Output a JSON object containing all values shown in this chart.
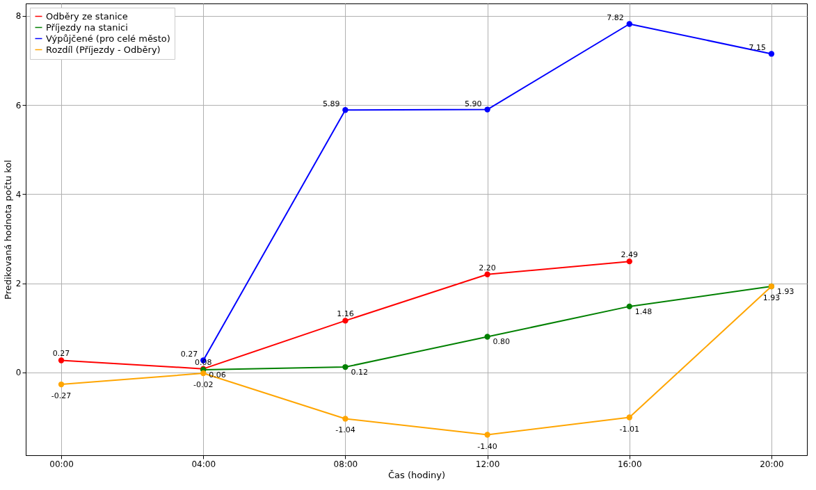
{
  "chart_data": {
    "type": "line",
    "xlabel": "Čas (hodiny)",
    "ylabel": "Predikovaná hodnota počtu kol",
    "x": [
      0,
      4,
      8,
      12,
      16,
      20
    ],
    "series": [
      {
        "name": "Odběry ze stanice",
        "color": "#ff0000",
        "values": [
          0.27,
          0.08,
          1.16,
          2.2,
          2.49,
          null
        ],
        "value_labels": [
          "0.27",
          "0.08",
          "1.16",
          "2.20",
          "2.49",
          null
        ]
      },
      {
        "name": "Příjezdy na stanici",
        "color": "#008000",
        "values": [
          null,
          0.06,
          0.12,
          0.8,
          1.48,
          1.93
        ],
        "value_labels": [
          null,
          "0.06",
          "0.12",
          "0.80",
          "1.48",
          "1.93"
        ]
      },
      {
        "name": "Výpůjčené (pro celé město)",
        "color": "#0000ff",
        "values": [
          null,
          0.27,
          5.89,
          5.9,
          7.82,
          7.15
        ],
        "value_labels": [
          null,
          "0.27",
          "5.89",
          "5.90",
          "7.82",
          "7.15"
        ]
      },
      {
        "name": "Rozdíl (Příjezdy - Odběry)",
        "color": "#ffa500",
        "values": [
          -0.27,
          -0.02,
          -1.04,
          -1.4,
          -1.01,
          1.93
        ],
        "value_labels": [
          "-0.27",
          "-0.02",
          "-1.04",
          "-1.40",
          "-1.01",
          "1.93"
        ]
      }
    ],
    "xlim": [
      -1,
      21
    ],
    "ylim": [
      -1.86,
      8.28
    ],
    "xticks": [
      {
        "value": 0,
        "label": "00:00"
      },
      {
        "value": 4,
        "label": "04:00"
      },
      {
        "value": 8,
        "label": "08:00"
      },
      {
        "value": 12,
        "label": "12:00"
      },
      {
        "value": 16,
        "label": "16:00"
      },
      {
        "value": 20,
        "label": "20:00"
      }
    ],
    "yticks": [
      0,
      2,
      4,
      6,
      8
    ],
    "grid": true,
    "legend": "top left",
    "marker": "circle",
    "line_style": "solid"
  }
}
